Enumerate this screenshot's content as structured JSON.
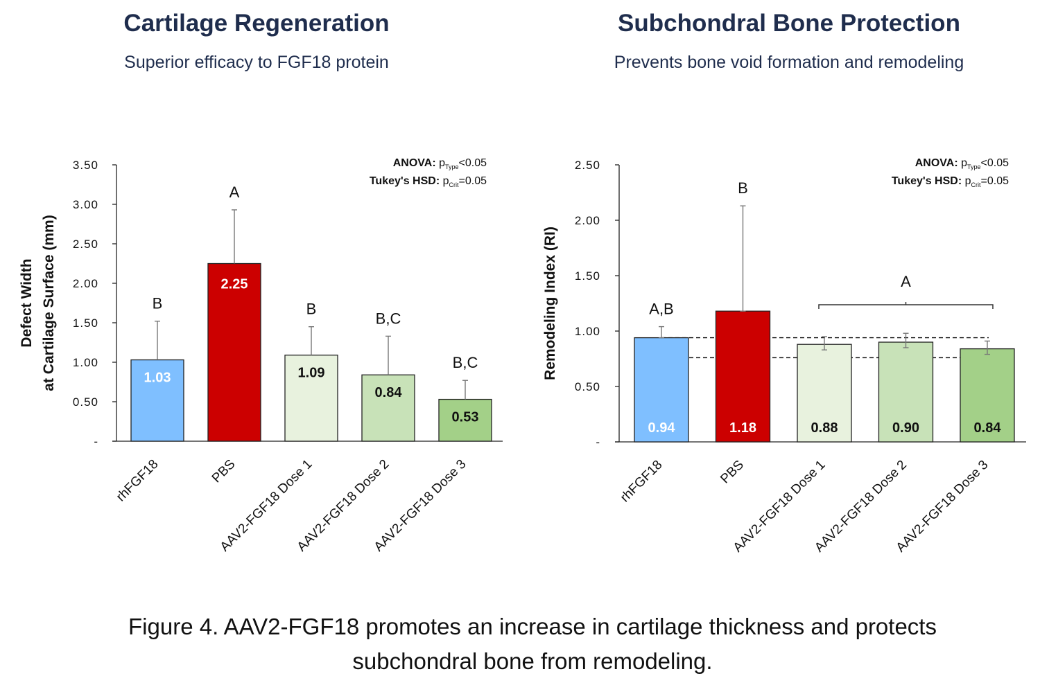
{
  "chart_data": [
    {
      "type": "bar",
      "title": "Cartilage Regeneration",
      "subtitle": "Superior efficacy to FGF18 protein",
      "ylabel_line1": "Defect Width",
      "ylabel_line2": "at Cartilage Surface (mm)",
      "xlabel": "",
      "ylim": [
        0,
        3.5
      ],
      "yticks": [
        0,
        0.5,
        1.0,
        1.5,
        2.0,
        2.5,
        3.0,
        3.5
      ],
      "ytick_labels": [
        "-",
        "0.50",
        "1.00",
        "1.50",
        "2.00",
        "2.50",
        "3.00",
        "3.50"
      ],
      "categories": [
        "rhFGF18",
        "PBS",
        "AAV2-FGF18 Dose 1",
        "AAV2-FGF18 Dose 2",
        "AAV2-FGF18 Dose 3"
      ],
      "values": [
        1.03,
        2.25,
        1.09,
        0.84,
        0.53
      ],
      "value_labels": [
        "1.03",
        "2.25",
        "1.09",
        "0.84",
        "0.53"
      ],
      "error_upper": [
        1.52,
        2.93,
        1.45,
        1.33,
        0.77
      ],
      "significance": [
        "B",
        "A",
        "B",
        "B,C",
        "B,C"
      ],
      "colors": [
        "#7fbfff",
        "#cc0000",
        "#e8f2de",
        "#c8e2b8",
        "#a3d088"
      ],
      "label_colors": [
        "#ffffff",
        "#ffffff",
        "#111111",
        "#111111",
        "#111111"
      ],
      "stats": {
        "anova": "ANOVA: ",
        "anova_p": "p",
        "anova_sub": "Type",
        "anova_rest": "<0.05",
        "tukey": "Tukey's HSD: ",
        "tukey_p": "p",
        "tukey_sub": "Crit",
        "tukey_rest": "=0.05"
      }
    },
    {
      "type": "bar",
      "title": "Subchondral Bone Protection",
      "subtitle": "Prevents bone void formation and remodeling",
      "ylabel_line1": "Remodeling Index (RI)",
      "ylabel_line2": "",
      "xlabel": "",
      "ylim": [
        0,
        2.5
      ],
      "yticks": [
        0,
        0.5,
        1.0,
        1.5,
        2.0,
        2.5
      ],
      "ytick_labels": [
        "-",
        "0.50",
        "1.00",
        "1.50",
        "2.00",
        "2.50"
      ],
      "categories": [
        "rhFGF18",
        "PBS",
        "AAV2-FGF18 Dose 1",
        "AAV2-FGF18 Dose 2",
        "AAV2-FGF18 Dose 3"
      ],
      "values": [
        0.94,
        1.18,
        0.88,
        0.9,
        0.84
      ],
      "value_labels": [
        "0.94",
        "1.18",
        "0.88",
        "0.90",
        "0.84"
      ],
      "error_upper": [
        1.04,
        2.13,
        0.95,
        0.98,
        0.91
      ],
      "error_lower": [
        0.94,
        1.18,
        0.83,
        0.85,
        0.79
      ],
      "significance": [
        "A,B",
        "B",
        "",
        "",
        ""
      ],
      "group_label": "A",
      "dashed_lines": [
        0.94,
        0.76
      ],
      "colors": [
        "#7fbfff",
        "#cc0000",
        "#e8f2de",
        "#c8e2b8",
        "#a3d088"
      ],
      "label_colors": [
        "#ffffff",
        "#ffffff",
        "#111111",
        "#111111",
        "#111111"
      ],
      "stats": {
        "anova": "ANOVA: ",
        "anova_p": "p",
        "anova_sub": "Type",
        "anova_rest": "<0.05",
        "tukey": "Tukey's HSD: ",
        "tukey_p": "p",
        "tukey_sub": "Crit",
        "tukey_rest": "=0.05"
      }
    }
  ],
  "caption": {
    "line1": "Figure 4. AAV2-FGF18 promotes an increase in cartilage thickness and protects",
    "line2": "subchondral bone from remodeling."
  }
}
